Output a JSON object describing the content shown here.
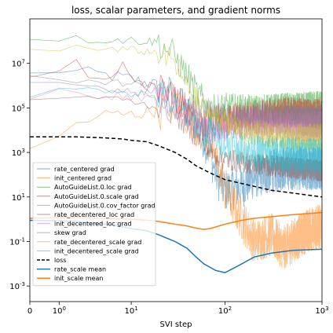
{
  "chart_data": {
    "type": "line",
    "title": "loss, scalar parameters, and gradient norms",
    "xlabel": "SVI step",
    "ylabel": "",
    "x_scale": "symlog",
    "y_scale": "log",
    "xlim": [
      0,
      1000
    ],
    "ylim": [
      0.0002,
      1000000000
    ],
    "x_ticks": [
      {
        "value": 0,
        "label": "0"
      },
      {
        "value": 1,
        "label": "10^0"
      },
      {
        "value": 10,
        "label": "10^1"
      },
      {
        "value": 100,
        "label": "10^2"
      },
      {
        "value": 1000,
        "label": "10^3"
      }
    ],
    "y_ticks": [
      {
        "value": 0.001,
        "label": "10^-3"
      },
      {
        "value": 0.1,
        "label": "10^-1"
      },
      {
        "value": 10,
        "label": "10^1"
      },
      {
        "value": 1000,
        "label": "10^3"
      },
      {
        "value": 100000,
        "label": "10^5"
      },
      {
        "value": 10000000,
        "label": "10^7"
      }
    ],
    "legend_position": "lower-left",
    "series": [
      {
        "name": "rate_centered grad",
        "color": "#1f77b4",
        "style": "thin",
        "noise": 1.0,
        "points": [
          [
            0,
            3000000.0
          ],
          [
            1,
            5000000.0
          ],
          [
            2,
            4000000.0
          ],
          [
            5,
            3000000.0
          ],
          [
            10,
            2000000.0
          ],
          [
            20,
            1000000.0
          ],
          [
            30,
            200000.0
          ],
          [
            40,
            50000.0
          ],
          [
            50,
            20000.0
          ],
          [
            60,
            5000.0
          ],
          [
            70,
            1000.0
          ],
          [
            80,
            100
          ],
          [
            100,
            20
          ],
          [
            150,
            30
          ],
          [
            200,
            80
          ],
          [
            400,
            200
          ],
          [
            1000,
            200
          ]
        ]
      },
      {
        "name": "init_centered grad",
        "color": "#ff7f0e",
        "style": "thin",
        "noise": 1.0,
        "points": [
          [
            0,
            1000
          ],
          [
            1,
            5000
          ],
          [
            2,
            20000.0
          ],
          [
            5,
            50000.0
          ],
          [
            10,
            50000.0
          ],
          [
            20,
            80000.0
          ],
          [
            30,
            200000.0
          ],
          [
            40,
            50000.0
          ],
          [
            50,
            20000.0
          ],
          [
            60,
            8000.0
          ],
          [
            70,
            3000.0
          ],
          [
            80,
            500
          ],
          [
            100,
            20
          ],
          [
            150,
            1
          ],
          [
            200,
            0.1
          ],
          [
            300,
            0.2
          ],
          [
            400,
            0.05
          ],
          [
            700,
            0.3
          ],
          [
            1000,
            0.5
          ]
        ]
      },
      {
        "name": "AutoGuideList.0.loc grad",
        "color": "#2ca02c",
        "style": "thin",
        "noise": 0.7,
        "points": [
          [
            0,
            150000000.0
          ],
          [
            1,
            150000000.0
          ],
          [
            2,
            120000000.0
          ],
          [
            5,
            120000000.0
          ],
          [
            10,
            110000000.0
          ],
          [
            15,
            100000000.0
          ],
          [
            20,
            90000000.0
          ],
          [
            30,
            20000000.0
          ],
          [
            40,
            3000000.0
          ],
          [
            50,
            500000.0
          ],
          [
            60,
            200000.0
          ],
          [
            70,
            80000.0
          ],
          [
            100,
            100000.0
          ],
          [
            200,
            80000.0
          ],
          [
            500,
            100000.0
          ],
          [
            1000,
            120000.0
          ]
        ]
      },
      {
        "name": "AutoGuideList.0.scale grad",
        "color": "#d62728",
        "style": "thin",
        "noise": 0.7,
        "points": [
          [
            0,
            2000000.0
          ],
          [
            1,
            3000000.0
          ],
          [
            2,
            10000000.0
          ],
          [
            3,
            2000000.0
          ],
          [
            5,
            2000000.0
          ],
          [
            8,
            10000000.0
          ],
          [
            10,
            2000000.0
          ],
          [
            15,
            1000000.0
          ],
          [
            20,
            800000.0
          ],
          [
            30,
            300000.0
          ],
          [
            40,
            100000.0
          ],
          [
            60,
            20000.0
          ],
          [
            100,
            30000.0
          ],
          [
            200,
            50000.0
          ],
          [
            500,
            60000.0
          ],
          [
            1000,
            50000.0
          ]
        ]
      },
      {
        "name": "AutoGuideList.0.cov_factor grad",
        "color": "#9467bd",
        "style": "thin",
        "noise": 0.7,
        "points": [
          [
            0,
            1000000.0
          ],
          [
            1,
            1500000.0
          ],
          [
            2,
            1000000.0
          ],
          [
            5,
            800000.0
          ],
          [
            10,
            600000.0
          ],
          [
            20,
            500000.0
          ],
          [
            30,
            200000.0
          ],
          [
            40,
            50000.0
          ],
          [
            60,
            10000.0
          ],
          [
            100,
            20000.0
          ],
          [
            200,
            30000.0
          ],
          [
            500,
            30000.0
          ],
          [
            1000,
            20000.0
          ]
        ]
      },
      {
        "name": "rate_decentered_loc grad",
        "color": "#8c564b",
        "style": "thin",
        "noise": 0.5,
        "points": [
          [
            0,
            200000.0
          ],
          [
            1,
            300000.0
          ],
          [
            5,
            300000.0
          ],
          [
            10,
            200000.0
          ],
          [
            20,
            100000.0
          ],
          [
            30,
            50000.0
          ],
          [
            50,
            5000.0
          ],
          [
            70,
            1000.0
          ],
          [
            100,
            500
          ],
          [
            200,
            300
          ],
          [
            500,
            200
          ],
          [
            1000,
            150
          ]
        ]
      },
      {
        "name": "init_decentered_loc grad",
        "color": "#e377c2",
        "style": "thin",
        "noise": 0.7,
        "points": [
          [
            0,
            300000.0
          ],
          [
            1,
            500000.0
          ],
          [
            5,
            400000.0
          ],
          [
            10,
            300000.0
          ],
          [
            20,
            200000.0
          ],
          [
            30,
            100000.0
          ],
          [
            50,
            30000.0
          ],
          [
            70,
            10000.0
          ],
          [
            100,
            15000.0
          ],
          [
            200,
            20000.0
          ],
          [
            500,
            15000.0
          ],
          [
            1000,
            15000.0
          ]
        ]
      },
      {
        "name": "skew grad",
        "color": "#7f7f7f",
        "style": "thin",
        "noise": 0.5,
        "points": [
          [
            0,
            2000000.0
          ],
          [
            1,
            2000000.0
          ],
          [
            5,
            1500000.0
          ],
          [
            10,
            1200000.0
          ],
          [
            20,
            1000000.0
          ],
          [
            30,
            500000.0
          ],
          [
            50,
            100000.0
          ],
          [
            100,
            50000.0
          ],
          [
            200,
            40000.0
          ],
          [
            500,
            40000.0
          ],
          [
            1000,
            40000.0
          ]
        ]
      },
      {
        "name": "rate_decentered_scale grad",
        "color": "#bcbd22",
        "style": "thin",
        "noise": 0.6,
        "points": [
          [
            0,
            50000000.0
          ],
          [
            1,
            50000000.0
          ],
          [
            2,
            50000000.0
          ],
          [
            5,
            40000000.0
          ],
          [
            10,
            40000000.0
          ],
          [
            20,
            30000000.0
          ],
          [
            30,
            10000000.0
          ],
          [
            40,
            1000000.0
          ],
          [
            50,
            200000.0
          ],
          [
            70,
            50000.0
          ],
          [
            100,
            20000.0
          ],
          [
            200,
            8000.0
          ],
          [
            500,
            5000.0
          ],
          [
            1000,
            5000.0
          ]
        ]
      },
      {
        "name": "init_decentered_scale grad",
        "color": "#17becf",
        "style": "thin",
        "noise": 0.8,
        "points": [
          [
            0,
            500000.0
          ],
          [
            1,
            500000.0
          ],
          [
            2,
            600000.0
          ],
          [
            5,
            800000.0
          ],
          [
            10,
            500000.0
          ],
          [
            20,
            300000.0
          ],
          [
            30,
            100000.0
          ],
          [
            40,
            50000.0
          ],
          [
            60,
            10000.0
          ],
          [
            100,
            3000.0
          ],
          [
            200,
            1000.0
          ],
          [
            500,
            800
          ],
          [
            1000,
            700
          ]
        ]
      },
      {
        "name": "loss",
        "color": "#000000",
        "style": "dashed",
        "noise": 0,
        "points": [
          [
            0,
            5000
          ],
          [
            1,
            5000
          ],
          [
            2,
            5000
          ],
          [
            3,
            4800
          ],
          [
            5,
            4500
          ],
          [
            8,
            4000
          ],
          [
            10,
            3500
          ],
          [
            15,
            3000
          ],
          [
            20,
            2000
          ],
          [
            30,
            1000
          ],
          [
            40,
            500
          ],
          [
            50,
            250
          ],
          [
            70,
            120
          ],
          [
            100,
            60
          ],
          [
            200,
            30
          ],
          [
            300,
            20
          ],
          [
            500,
            15
          ],
          [
            1000,
            10
          ]
        ]
      },
      {
        "name": "rate_scale mean",
        "color": "#1f77b4",
        "style": "thick",
        "noise": 0,
        "points": [
          [
            0,
            0.9
          ],
          [
            1,
            0.85
          ],
          [
            2,
            0.8
          ],
          [
            3,
            0.7
          ],
          [
            5,
            0.6
          ],
          [
            8,
            0.45
          ],
          [
            10,
            0.38
          ],
          [
            15,
            0.3
          ],
          [
            20,
            0.2
          ],
          [
            30,
            0.1
          ],
          [
            40,
            0.05
          ],
          [
            50,
            0.02
          ],
          [
            60,
            0.01
          ],
          [
            80,
            0.005
          ],
          [
            100,
            0.004
          ],
          [
            120,
            0.006
          ],
          [
            150,
            0.01
          ],
          [
            200,
            0.02
          ],
          [
            300,
            0.03
          ],
          [
            500,
            0.04
          ],
          [
            1000,
            0.045
          ]
        ]
      },
      {
        "name": "init_scale mean",
        "color": "#ff7f0e",
        "style": "thick",
        "noise": 0,
        "points": [
          [
            0,
            1.1
          ],
          [
            1,
            1.2
          ],
          [
            2,
            1.2
          ],
          [
            3,
            1.15
          ],
          [
            5,
            1.1
          ],
          [
            10,
            1.0
          ],
          [
            15,
            0.9
          ],
          [
            20,
            0.8
          ],
          [
            30,
            0.6
          ],
          [
            40,
            0.5
          ],
          [
            50,
            0.4
          ],
          [
            60,
            0.35
          ],
          [
            70,
            0.38
          ],
          [
            80,
            0.45
          ],
          [
            100,
            0.6
          ],
          [
            150,
            0.9
          ],
          [
            200,
            1.1
          ],
          [
            300,
            1.3
          ],
          [
            500,
            1.6
          ],
          [
            1000,
            2.0
          ]
        ]
      }
    ]
  }
}
